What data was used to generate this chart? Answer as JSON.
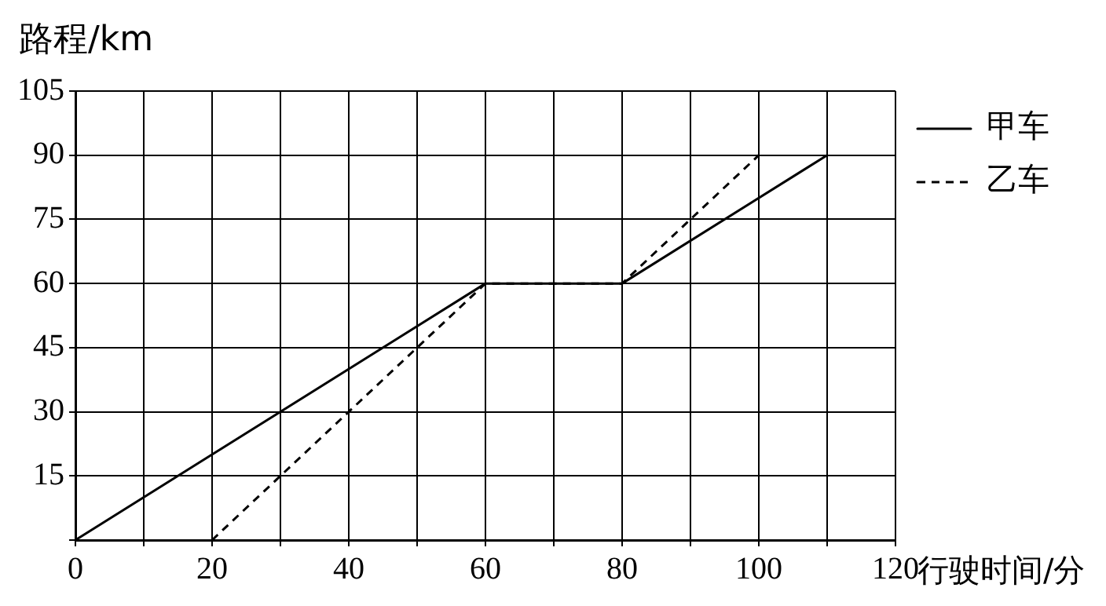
{
  "chart_data": {
    "type": "line",
    "xlabel": "行驶时间/分",
    "ylabel": "路程/km",
    "xlim": [
      0,
      120
    ],
    "ylim": [
      0,
      105
    ],
    "xticks": [
      0,
      {
        "value": 10,
        "label": null
      },
      20,
      {
        "value": 30,
        "label": null
      },
      40,
      {
        "value": 50,
        "label": null
      },
      60,
      {
        "value": 70,
        "label": null
      },
      80,
      {
        "value": 90,
        "label": null
      },
      100,
      {
        "value": 110,
        "label": null
      },
      120
    ],
    "yticks": [
      {
        "value": 0,
        "label": null
      },
      15,
      30,
      45,
      60,
      75,
      90,
      105
    ],
    "grid": true,
    "legend": "top right",
    "marker": "none",
    "series": [
      {
        "name": "甲车",
        "color": "#000000",
        "line_style": "solid",
        "x": [
          0,
          60,
          80,
          110
        ],
        "values": [
          0,
          60,
          60,
          90
        ]
      },
      {
        "name": "乙车",
        "color": "#000000",
        "line_style": "dashed",
        "x": [
          20,
          60,
          80,
          100
        ],
        "values": [
          0,
          60,
          60,
          90
        ]
      }
    ]
  }
}
